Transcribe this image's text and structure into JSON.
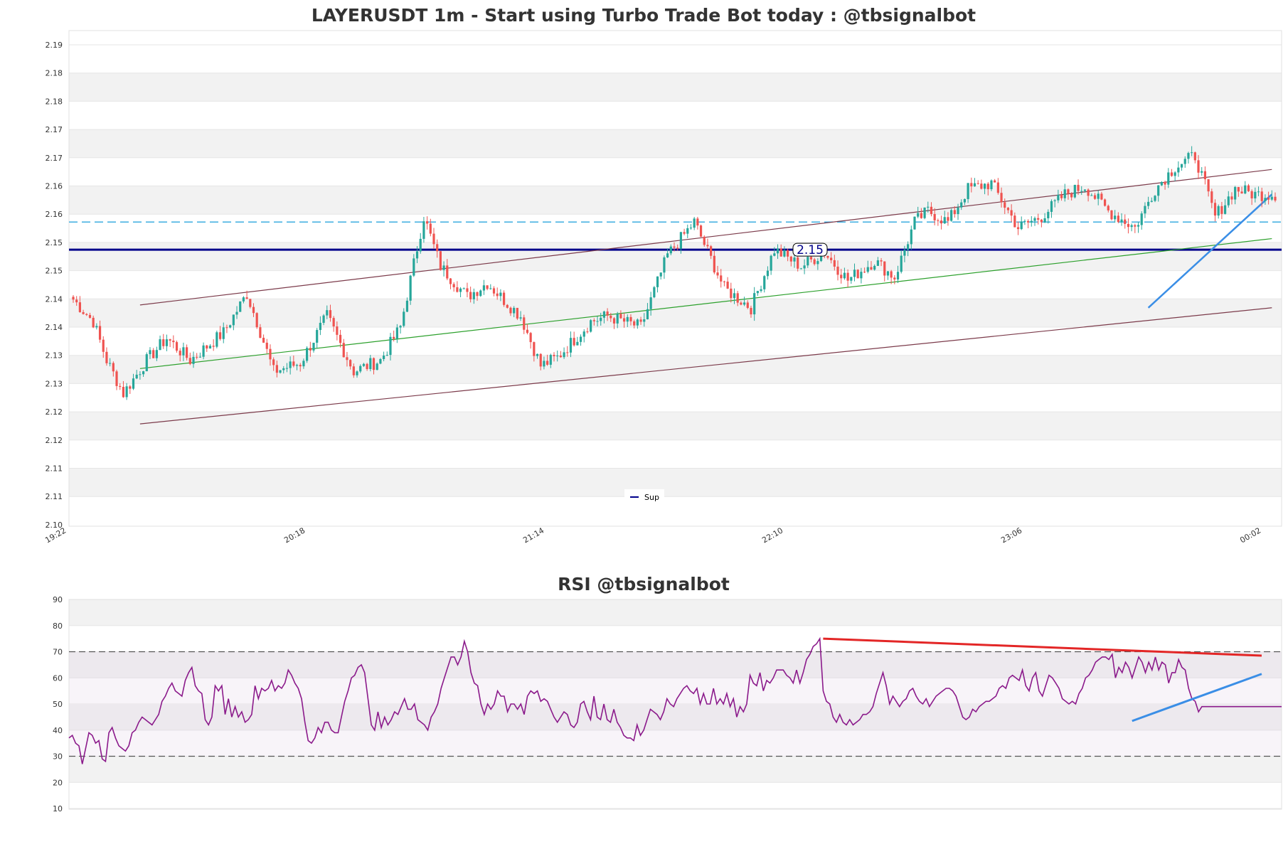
{
  "colors": {
    "up": "#26a69a",
    "down": "#ef5350",
    "channel": "#7b3a4a",
    "midline": "#2ca02c",
    "support": "#00008b",
    "resistance_dash": "#3daee0",
    "trend_blue": "#3a8ee6",
    "trend_red": "#e32626",
    "rsi_line": "#8b1a8b",
    "band_gray": "#f2f2f2"
  },
  "chart_data": [
    {
      "type": "candlestick",
      "title": "LAYERUSDT 1m - Start using Turbo Trade Bot today : @tbsignalbot",
      "y_tick_labels": [
        "2.19",
        "2.18",
        "2.18",
        "2.17",
        "2.17",
        "2.16",
        "2.16",
        "2.15",
        "2.15",
        "2.14",
        "2.14",
        "2.13",
        "2.13",
        "2.12",
        "2.12",
        "2.11",
        "2.11",
        "2.10"
      ],
      "x_tick_labels": [
        "19:22",
        "20:18",
        "21:14",
        "22:10",
        "23:06",
        "00:02"
      ],
      "ylim": [
        2.1,
        2.19
      ],
      "legend": [
        {
          "name": "Sup",
          "color": "#00008b"
        }
      ],
      "support_level": 2.15,
      "support_label": "2.15",
      "resistance_level": 2.155,
      "series_shape": {
        "anchors_index": [
          0,
          6,
          10,
          15,
          22,
          28,
          35,
          45,
          52,
          55,
          60,
          68,
          76,
          84,
          92,
          98,
          105,
          110,
          118,
          124,
          128,
          134,
          140,
          145,
          155,
          160,
          170,
          178,
          186,
          195,
          203,
          210,
          218,
          225,
          232,
          240,
          246,
          252,
          256,
          262,
          268,
          275,
          283,
          290,
          297,
          303,
          310,
          318,
          324,
          330,
          336,
          342,
          348,
          354,
          360
        ],
        "anchors_price": [
          2.141,
          2.137,
          2.13,
          2.124,
          2.13,
          2.134,
          2.13,
          2.135,
          2.142,
          2.137,
          2.128,
          2.1295,
          2.138,
          2.128,
          2.13,
          2.136,
          2.156,
          2.147,
          2.1415,
          2.144,
          2.1415,
          2.138,
          2.129,
          2.1305,
          2.137,
          2.138,
          2.136,
          2.149,
          2.155,
          2.143,
          2.1395,
          2.15,
          2.147,
          2.1495,
          2.1445,
          2.148,
          2.145,
          2.155,
          2.157,
          2.155,
          2.161,
          2.162,
          2.154,
          2.156,
          2.16,
          2.1615,
          2.157,
          2.154,
          2.161,
          2.165,
          2.167,
          2.156,
          2.161,
          2.16,
          2.16
        ],
        "count": 361
      },
      "trendlines": {
        "channel_upper": [
          [
            20,
            2.14
          ],
          [
            359,
            2.1645
          ]
        ],
        "channel_lower": [
          [
            20,
            2.1185
          ],
          [
            359,
            2.1395
          ]
        ],
        "midline": [
          [
            20,
            2.1285
          ],
          [
            359,
            2.152
          ]
        ],
        "blue_support": [
          [
            322,
            2.1395
          ],
          [
            359,
            2.16
          ]
        ]
      }
    },
    {
      "type": "line",
      "title": "RSI @tbsignalbot",
      "y_tick_labels": [
        "90",
        "80",
        "70",
        "60",
        "50",
        "40",
        "30",
        "20",
        "10"
      ],
      "ylim": [
        10,
        90
      ],
      "overbought": 70,
      "oversold": 30,
      "values": [
        37,
        38,
        35,
        34,
        27,
        33,
        39,
        38,
        35,
        36,
        29,
        28,
        39,
        41,
        37,
        34,
        33,
        32,
        34,
        39,
        40,
        43,
        45,
        44,
        43,
        42,
        44,
        46,
        51,
        53,
        56,
        58,
        55,
        54,
        53,
        59,
        62,
        64,
        57,
        55,
        54,
        44,
        42,
        45,
        57,
        55,
        57,
        46,
        52,
        45,
        49,
        45,
        47,
        43,
        44,
        46,
        57,
        52,
        56,
        55,
        56,
        59,
        55,
        57,
        56,
        58,
        63,
        61,
        58,
        56,
        52,
        43,
        36,
        35,
        37,
        41,
        39,
        43,
        43,
        40,
        39,
        39,
        45,
        51,
        55,
        60,
        61,
        64,
        65,
        62,
        52,
        42,
        40,
        47,
        41,
        45,
        42,
        44,
        47,
        46,
        49,
        52,
        48,
        48,
        50,
        44,
        43,
        42,
        40,
        45,
        47,
        50,
        56,
        60,
        64,
        68,
        68,
        65,
        68,
        74,
        70,
        62,
        58,
        57,
        50,
        46,
        50,
        48,
        50,
        55,
        53,
        53,
        47,
        50,
        50,
        48,
        50,
        46,
        53,
        55,
        54,
        55,
        51,
        52,
        51,
        48,
        45,
        43,
        45,
        47,
        46,
        42,
        41,
        43,
        50,
        51,
        47,
        44,
        53,
        45,
        44,
        50,
        44,
        43,
        48,
        43,
        41,
        38,
        37,
        37,
        36,
        42,
        38,
        40,
        44,
        48,
        47,
        46,
        44,
        47,
        52,
        50,
        49,
        52,
        54,
        56,
        57,
        55,
        54,
        56,
        50,
        54,
        50,
        50,
        56,
        50,
        52,
        50,
        54,
        49,
        52,
        45,
        49,
        47,
        50,
        61,
        58,
        57,
        62,
        55,
        59,
        58,
        60,
        63,
        63,
        63,
        61,
        60,
        58,
        63,
        58,
        62,
        67,
        69,
        72,
        73,
        75,
        55,
        51,
        50,
        45,
        43,
        46,
        43,
        42,
        44,
        42,
        43,
        44,
        46,
        46,
        47,
        49,
        54,
        58,
        62,
        57,
        50,
        53,
        51,
        49,
        51,
        52,
        55,
        56,
        53,
        51,
        50,
        52,
        49,
        51,
        53,
        54,
        55,
        56,
        56,
        55,
        53,
        49,
        45,
        44,
        45,
        48,
        47,
        49,
        50,
        51,
        51,
        52,
        53,
        56,
        57,
        56,
        60,
        61,
        60,
        59,
        63,
        57,
        55,
        60,
        62,
        55,
        53,
        57,
        61,
        60,
        58,
        56,
        52,
        51,
        50,
        51,
        50,
        54,
        56,
        60,
        61,
        63,
        66,
        67,
        68,
        68,
        67,
        69,
        60,
        64,
        62,
        66,
        64,
        60,
        64,
        68,
        66,
        62,
        66,
        63,
        68,
        63,
        66,
        65,
        58,
        62,
        62,
        67,
        64,
        63,
        56,
        52,
        51,
        47,
        49,
        49,
        49,
        49,
        49,
        49,
        49,
        49,
        49,
        49,
        49,
        49,
        49,
        49,
        49,
        49,
        49,
        49,
        49,
        49,
        49,
        49,
        49,
        49,
        49
      ],
      "trendlines": {
        "red_resistance": [
          [
            227,
            75
          ],
          [
            359,
            68.5
          ]
        ],
        "blue_support": [
          [
            320,
            43.5
          ],
          [
            359,
            61.5
          ]
        ]
      }
    }
  ]
}
